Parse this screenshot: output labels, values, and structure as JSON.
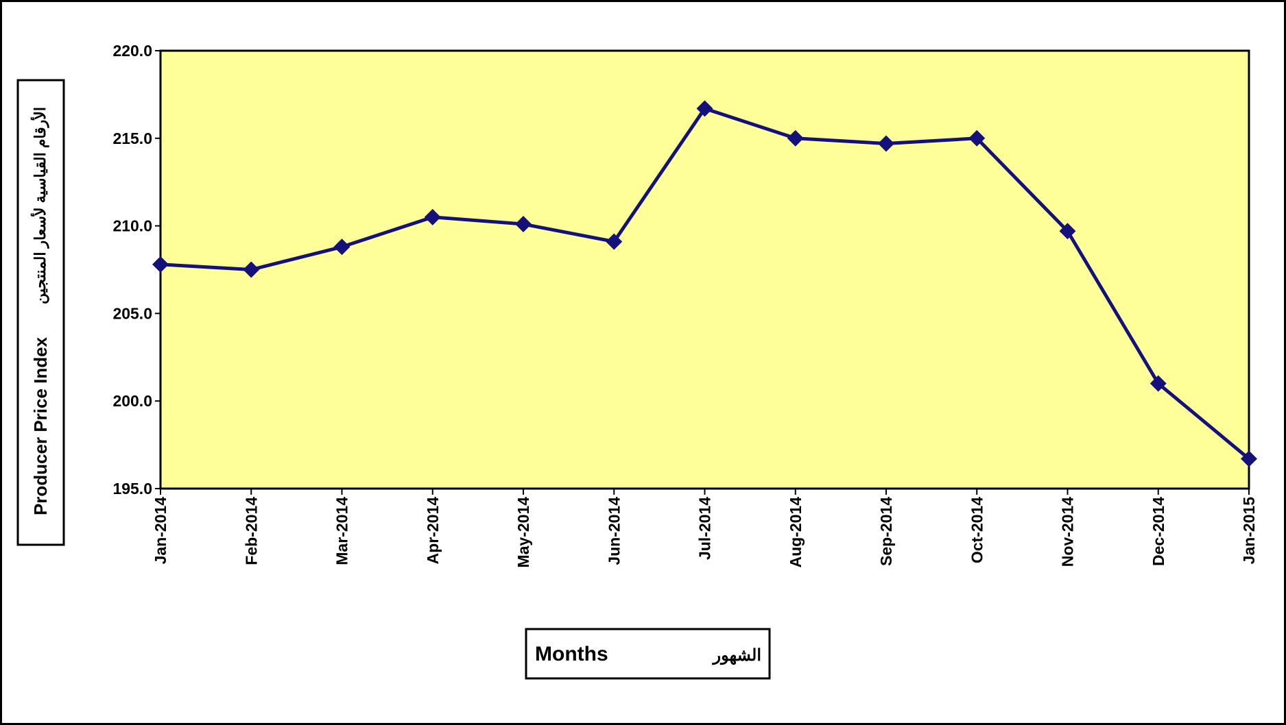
{
  "chart_data": {
    "type": "line",
    "y_label": "Producer Price Index",
    "y_label_ar": "الأرقام القياسية لأسعار المنتجين",
    "x_label": "Months",
    "x_label_ar": "الشهور",
    "categories": [
      "Jan-2014",
      "Feb-2014",
      "Mar-2014",
      "Apr-2014",
      "May-2014",
      "Jun-2014",
      "Jul-2014",
      "Aug-2014",
      "Sep-2014",
      "Oct-2014",
      "Nov-2014",
      "Dec-2014",
      "Jan-2015"
    ],
    "series": [
      {
        "color": "#14127a",
        "values": [
          207.8,
          207.5,
          208.8,
          210.5,
          210.1,
          209.1,
          216.7,
          215.0,
          214.7,
          215.0,
          209.7,
          201.0,
          196.7
        ]
      }
    ],
    "ylim": [
      195,
      220
    ],
    "yticks": [
      {
        "value": 195,
        "label": "195.0"
      },
      {
        "value": 200,
        "label": "200.0"
      },
      {
        "value": 205,
        "label": "205.0"
      },
      {
        "value": 210,
        "label": "210.0"
      },
      {
        "value": 215,
        "label": "215.0"
      },
      {
        "value": 220,
        "label": "220.0"
      }
    ],
    "plot_background": "#ffff99",
    "grid": false
  }
}
